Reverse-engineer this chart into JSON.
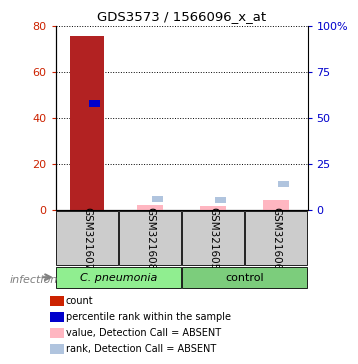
{
  "title": "GDS3573 / 1566096_x_at",
  "samples": [
    "GSM321607",
    "GSM321608",
    "GSM321605",
    "GSM321606"
  ],
  "unique_groups": [
    "C. pneumonia",
    "control"
  ],
  "unique_group_colors": [
    "#90EE90",
    "#7CCD7C"
  ],
  "count_values": [
    75.5,
    0,
    0,
    0
  ],
  "rank_values_pct": [
    58,
    0,
    0,
    0
  ],
  "absent_value_values": [
    0,
    2.2,
    1.8,
    4.5
  ],
  "absent_rank_pct": [
    0,
    6.0,
    5.5,
    14.0
  ],
  "ylim_left": [
    0,
    80
  ],
  "ylim_right": [
    0,
    100
  ],
  "yticks_left": [
    0,
    20,
    40,
    60,
    80
  ],
  "yticks_right": [
    0,
    25,
    50,
    75,
    100
  ],
  "ytick_labels_left": [
    "0",
    "20",
    "40",
    "60",
    "80"
  ],
  "ytick_labels_right": [
    "0",
    "25",
    "50",
    "75",
    "100%"
  ],
  "left_color": "#CC2200",
  "right_color": "#0000CC",
  "group_label": "infection",
  "sample_box_color": "#CCCCCC",
  "legend_items": [
    {
      "label": "count",
      "color": "#CC2200"
    },
    {
      "label": "percentile rank within the sample",
      "color": "#0000CC"
    },
    {
      "label": "value, Detection Call = ABSENT",
      "color": "#FFB6C1"
    },
    {
      "label": "rank, Detection Call = ABSENT",
      "color": "#B0C4DE"
    }
  ]
}
